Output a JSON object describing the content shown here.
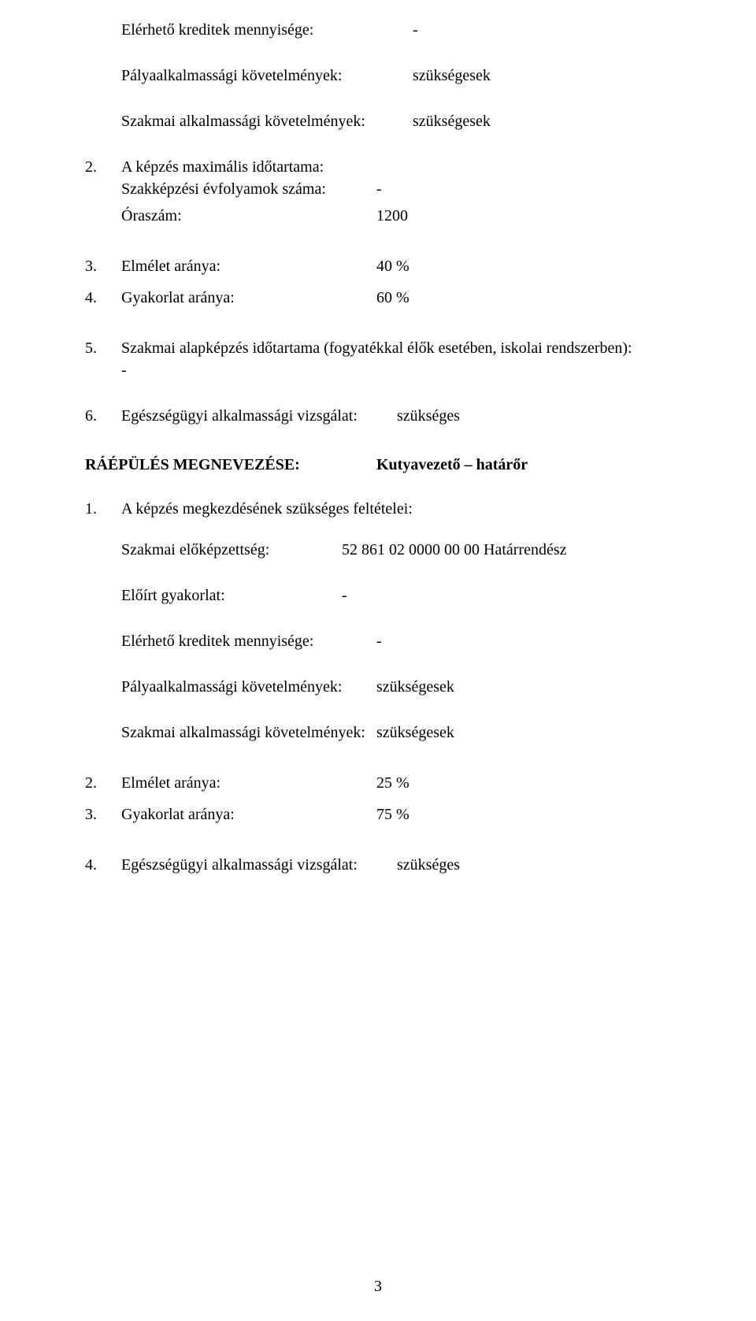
{
  "page_number": "3",
  "sec1": {
    "credits_label": "Elérhető kreditek mennyisége:",
    "credits_value": "-",
    "aptitude_label": "Pályaalkalmassági követelmények:",
    "aptitude_value": "szükségesek",
    "prof_apt_label": "Szakmai alkalmassági követelmények:",
    "prof_apt_value": "szükségesek"
  },
  "list1": {
    "n2": "2.",
    "n2_line1": "A képzés maximális időtartama:",
    "n2_years_label": "Szakképzési évfolyamok száma:",
    "n2_years_value": "-",
    "n2_hours_label": "Óraszám:",
    "n2_hours_value": "1200",
    "n3": "3.",
    "n3_label": "Elmélet aránya:",
    "n3_value": "40 %",
    "n4": "4.",
    "n4_label": "Gyakorlat aránya:",
    "n4_value": "60 %",
    "n5": "5.",
    "n5_text": "Szakmai alapképzés időtartama (fogyatékkal élők esetében, iskolai rendszerben):",
    "n5_dash": "-",
    "n6": "6.",
    "n6_label": "Egészségügyi alkalmassági vizsgálat:",
    "n6_value": "szükséges"
  },
  "heading": {
    "label": "RÁÉPÜLÉS MEGNEVEZÉSE:",
    "value": "Kutyavezető – határőr"
  },
  "list2": {
    "n1": "1.",
    "n1_text": "A képzés megkezdésének szükséges feltételei:",
    "n1_prequal_label": "Szakmai előképzettség:",
    "n1_prequal_value": "52 861 02 0000 00 00 Határrendész",
    "n1_practice_label": "Előírt gyakorlat:",
    "n1_practice_value": "-",
    "n1_credits_label": "Elérhető kreditek mennyisége:",
    "n1_credits_value": "-",
    "n1_aptitude_label": "Pályaalkalmassági követelmények:",
    "n1_aptitude_value": "szükségesek",
    "n1_prof_apt_label": "Szakmai alkalmassági követelmények:",
    "n1_prof_apt_value": "szükségesek",
    "n2": "2.",
    "n2_label": "Elmélet aránya:",
    "n2_value": "25 %",
    "n3": "3.",
    "n3_label": "Gyakorlat aránya:",
    "n3_value": "75 %",
    "n4": "4.",
    "n4_label": "Egészségügyi alkalmassági vizsgálat:",
    "n4_value": "szükséges"
  }
}
